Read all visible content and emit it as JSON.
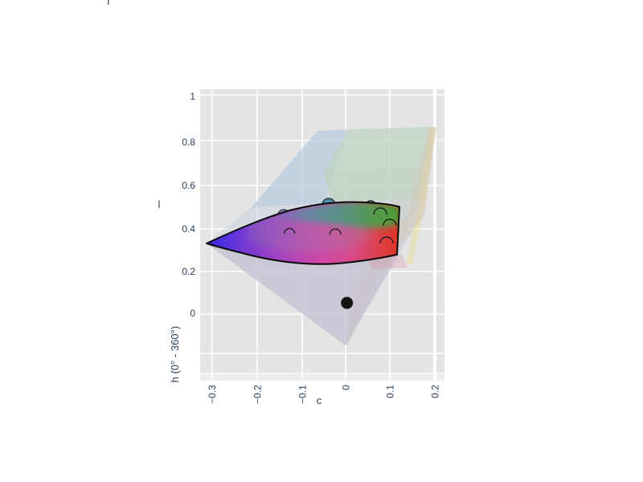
{
  "title_fragment": "|",
  "axes": {
    "l": {
      "title": "l",
      "ticks": [
        "1",
        "0.8",
        "0.6",
        "0.4",
        "0.2",
        "0"
      ]
    },
    "c": {
      "title": "c",
      "ticks": [
        "−0.3",
        "−0.2",
        "−0.1",
        "0",
        "0.1",
        "0.2"
      ]
    },
    "h": {
      "title": "h (0° - 360°)"
    }
  },
  "colors": {
    "page_background": "#ffffff",
    "font": "#2a3f5f",
    "wall": "#e4e4e4",
    "floor_band": "#ededed",
    "gridline": "#ffffff",
    "slice_outline": "#0a0a0a",
    "slice_gradient": [
      "#3525dd",
      "#5530dd",
      "#7a3ad2",
      "#9c40c6",
      "#bc44b4",
      "#d248a4",
      "#d8488c",
      "#dd4150",
      "#e03424"
    ],
    "slice_top_band": [
      "#508ca0",
      "#46a078",
      "#41a43c"
    ],
    "volume_tints": {
      "blue": "#ccd8ea",
      "green": "#cfe4cb",
      "yellow": "#e8e2b8",
      "gray_green": "#cdd4cc",
      "lavender": "#c6c3d2",
      "beige": "#d8cabc",
      "pink": "#e4b4bc"
    }
  },
  "chart_data": {
    "type": "scatter",
    "subtype": "3d color-space plot (mesh gamut volume + opaque chroma-lightness slice + sphere markers)",
    "title": "",
    "xlabel": "c",
    "ylabel": "l",
    "zlabel": "h (0° - 360°)",
    "axis_ranges": {
      "c": [
        -0.3,
        0.2
      ],
      "l": [
        0,
        1
      ]
    },
    "c_ticks": [
      -0.3,
      -0.2,
      -0.1,
      0,
      0.1,
      0.2
    ],
    "l_ticks": [
      1,
      0.8,
      0.6,
      0.4,
      0.2,
      0
    ],
    "grid": true,
    "legend": false,
    "surfaces": [
      {
        "name": "gamut-volume",
        "desc": "translucent cone-like volume, apex at bottom near c=0, spreading up to a pale blue/green/yellow sheet at l≈0.85"
      },
      {
        "name": "gamut-slice",
        "desc": "opaque leaf-shaped slice, black outline; blue tip at c≈-0.31 l≈0.31, green top-right edge, red bottom-right at c≈0.12, magenta underside"
      }
    ],
    "markers": [
      {
        "c": -0.038,
        "l": 0.5,
        "style": "sphere",
        "color": "#4b90a6",
        "radius_px": 8,
        "note": "teal, protrudes above slice"
      },
      {
        "c": 0.056,
        "l": 0.493,
        "style": "sphere",
        "color": "#7d9c6e",
        "radius_px": 7,
        "note": "sage green, protrudes above slice"
      },
      {
        "c": -0.139,
        "l": 0.452,
        "style": "sphere",
        "color": "#8d90da",
        "radius_px": 7,
        "note": "periwinkle, protrudes above slice"
      },
      {
        "c": -0.126,
        "l": 0.367,
        "style": "occluded-arc",
        "radius_px": 6.5,
        "note": "behind slice, outline only"
      },
      {
        "c": -0.023,
        "l": 0.363,
        "style": "occluded-arc",
        "radius_px": 7,
        "note": "behind slice, outline only"
      },
      {
        "c": 0.078,
        "l": 0.456,
        "style": "occluded-arc",
        "radius_px": 8,
        "note": "behind slice, outline only"
      },
      {
        "c": 0.099,
        "l": 0.404,
        "style": "occluded-arc",
        "radius_px": 8,
        "note": "behind slice, outline only"
      },
      {
        "c": 0.092,
        "l": 0.322,
        "style": "occluded-arc",
        "radius_px": 8,
        "note": "behind slice, outline only"
      },
      {
        "c": 0.003,
        "l": 0.048,
        "style": "sphere-front",
        "color": "#131313",
        "radius_px": 7.5,
        "note": "black sphere in front of volume"
      }
    ]
  }
}
